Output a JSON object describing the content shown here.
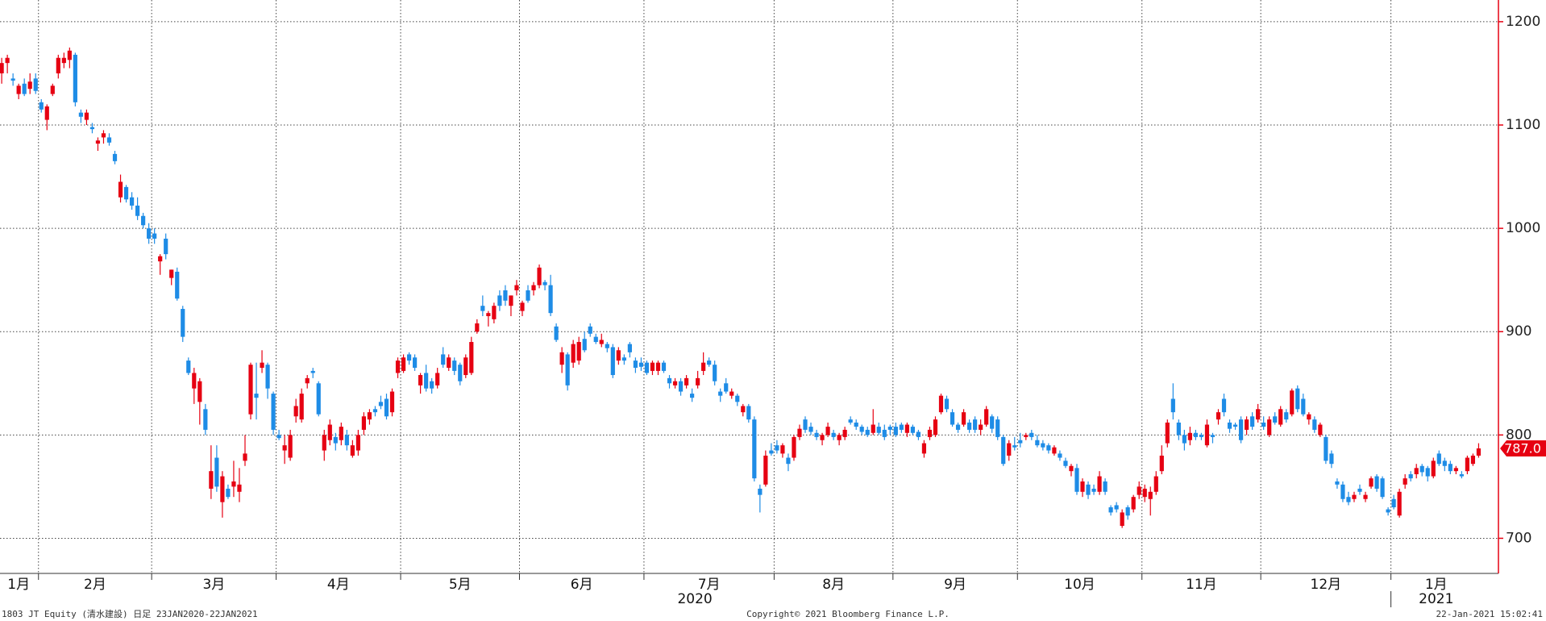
{
  "chart_data": {
    "type": "candlestick",
    "up_color": "#e60012",
    "down_color": "#1e8ce6",
    "ylim": [
      666,
      1221
    ],
    "yticks": [
      700,
      800,
      900,
      1000,
      1100,
      1200
    ],
    "grid": true,
    "xticks": [
      {
        "value": 0,
        "label": "1月"
      },
      {
        "value": 7,
        "label": "2月"
      },
      {
        "value": 27,
        "label": "3月"
      },
      {
        "value": 49,
        "label": "4月"
      },
      {
        "value": 71,
        "label": "5月"
      },
      {
        "value": 92,
        "label": "6月"
      },
      {
        "value": 114,
        "label": "7月"
      },
      {
        "value": 137,
        "label": "8月"
      },
      {
        "value": 158,
        "label": "9月"
      },
      {
        "value": 180,
        "label": "10月"
      },
      {
        "value": 202,
        "label": "11月"
      },
      {
        "value": 223,
        "label": "12月"
      },
      {
        "value": 246,
        "label": "1月"
      }
    ],
    "years": [
      {
        "value": 0,
        "label": "2020"
      },
      {
        "value": 246,
        "label": "2021"
      }
    ],
    "last_value": {
      "value": 787,
      "label": "787.0"
    },
    "footer_left": "1803 JT Equity (清水建設)  日足 23JAN2020-22JAN2021",
    "footer_center": "Copyright© 2021 Bloomberg Finance L.P.",
    "footer_right": "22-Jan-2021 15:02:41",
    "candles": [
      [
        1150,
        1165,
        1140,
        1160
      ],
      [
        1160,
        1168,
        1150,
        1165
      ],
      [
        1145,
        1150,
        1138,
        1143
      ],
      [
        1130,
        1140,
        1125,
        1138
      ],
      [
        1140,
        1145,
        1128,
        1130
      ],
      [
        1135,
        1150,
        1130,
        1142
      ],
      [
        1145,
        1150,
        1130,
        1133
      ],
      [
        1122,
        1125,
        1112,
        1115
      ],
      [
        1105,
        1120,
        1095,
        1118
      ],
      [
        1130,
        1140,
        1128,
        1138
      ],
      [
        1150,
        1168,
        1145,
        1165
      ],
      [
        1160,
        1170,
        1155,
        1165
      ],
      [
        1163,
        1175,
        1155,
        1172
      ],
      [
        1168,
        1170,
        1118,
        1122
      ],
      [
        1112,
        1115,
        1102,
        1108
      ],
      [
        1105,
        1115,
        1100,
        1112
      ],
      [
        1098,
        1102,
        1092,
        1096
      ],
      [
        1082,
        1088,
        1075,
        1085
      ],
      [
        1088,
        1095,
        1082,
        1092
      ],
      [
        1088,
        1092,
        1080,
        1083
      ],
      [
        1072,
        1075,
        1062,
        1065
      ],
      [
        1030,
        1052,
        1025,
        1045
      ],
      [
        1040,
        1042,
        1025,
        1028
      ],
      [
        1030,
        1035,
        1018,
        1022
      ],
      [
        1022,
        1030,
        1008,
        1012
      ],
      [
        1012,
        1015,
        1000,
        1003
      ],
      [
        1000,
        1005,
        985,
        990
      ],
      [
        995,
        1000,
        985,
        990
      ],
      [
        968,
        975,
        955,
        973
      ],
      [
        990,
        995,
        970,
        975
      ],
      [
        952,
        960,
        945,
        960
      ],
      [
        958,
        962,
        930,
        932
      ],
      [
        922,
        925,
        890,
        895
      ],
      [
        872,
        875,
        858,
        860
      ],
      [
        845,
        865,
        830,
        860
      ],
      [
        832,
        855,
        810,
        852
      ],
      [
        825,
        830,
        800,
        805
      ],
      [
        748,
        790,
        738,
        765
      ],
      [
        778,
        790,
        745,
        750
      ],
      [
        735,
        765,
        720,
        760
      ],
      [
        748,
        752,
        738,
        740
      ],
      [
        750,
        775,
        740,
        755
      ],
      [
        745,
        768,
        735,
        752
      ],
      [
        775,
        800,
        770,
        782
      ],
      [
        820,
        870,
        815,
        868
      ],
      [
        840,
        870,
        815,
        836
      ],
      [
        865,
        882,
        860,
        870
      ],
      [
        868,
        870,
        835,
        845
      ],
      [
        840,
        842,
        800,
        805
      ],
      [
        800,
        805,
        795,
        797
      ],
      [
        785,
        800,
        772,
        790
      ],
      [
        778,
        805,
        775,
        800
      ],
      [
        818,
        835,
        812,
        828
      ],
      [
        815,
        845,
        812,
        840
      ],
      [
        850,
        858,
        845,
        855
      ],
      [
        862,
        865,
        855,
        860
      ],
      [
        850,
        852,
        818,
        820
      ],
      [
        785,
        805,
        775,
        800
      ],
      [
        795,
        815,
        790,
        810
      ],
      [
        798,
        802,
        785,
        792
      ],
      [
        795,
        812,
        790,
        808
      ],
      [
        800,
        805,
        785,
        790
      ],
      [
        780,
        795,
        778,
        790
      ],
      [
        785,
        805,
        780,
        800
      ],
      [
        805,
        822,
        800,
        818
      ],
      [
        815,
        825,
        810,
        822
      ],
      [
        825,
        828,
        818,
        822
      ],
      [
        832,
        838,
        825,
        828
      ],
      [
        835,
        840,
        815,
        818
      ],
      [
        822,
        845,
        818,
        842
      ],
      [
        860,
        875,
        855,
        872
      ],
      [
        862,
        878,
        860,
        875
      ],
      [
        878,
        880,
        868,
        872
      ],
      [
        875,
        878,
        862,
        865
      ],
      [
        848,
        860,
        840,
        858
      ],
      [
        860,
        868,
        842,
        845
      ],
      [
        852,
        855,
        840,
        845
      ],
      [
        848,
        865,
        845,
        860
      ],
      [
        878,
        885,
        865,
        868
      ],
      [
        865,
        878,
        862,
        875
      ],
      [
        872,
        875,
        858,
        862
      ],
      [
        868,
        870,
        848,
        852
      ],
      [
        858,
        878,
        855,
        875
      ],
      [
        860,
        895,
        858,
        890
      ],
      [
        900,
        912,
        898,
        908
      ],
      [
        925,
        935,
        915,
        920
      ],
      [
        915,
        920,
        905,
        918
      ],
      [
        912,
        928,
        908,
        925
      ],
      [
        935,
        940,
        920,
        925
      ],
      [
        940,
        945,
        925,
        930
      ],
      [
        925,
        935,
        915,
        935
      ],
      [
        940,
        950,
        935,
        945
      ],
      [
        920,
        930,
        915,
        928
      ],
      [
        940,
        945,
        928,
        930
      ],
      [
        940,
        948,
        935,
        945
      ],
      [
        945,
        965,
        942,
        962
      ],
      [
        948,
        950,
        940,
        945
      ],
      [
        945,
        955,
        915,
        918
      ],
      [
        905,
        908,
        890,
        892
      ],
      [
        868,
        885,
        860,
        880
      ],
      [
        878,
        880,
        843,
        848
      ],
      [
        870,
        892,
        865,
        888
      ],
      [
        872,
        895,
        868,
        890
      ],
      [
        893,
        900,
        880,
        882
      ],
      [
        905,
        908,
        895,
        898
      ],
      [
        895,
        898,
        888,
        890
      ],
      [
        888,
        898,
        885,
        892
      ],
      [
        888,
        890,
        880,
        884
      ],
      [
        885,
        888,
        855,
        858
      ],
      [
        872,
        885,
        868,
        882
      ],
      [
        875,
        878,
        868,
        872
      ],
      [
        888,
        890,
        875,
        880
      ],
      [
        872,
        875,
        860,
        865
      ],
      [
        870,
        875,
        862,
        866
      ],
      [
        870,
        872,
        858,
        860
      ],
      [
        862,
        872,
        858,
        870
      ],
      [
        862,
        872,
        858,
        870
      ],
      [
        870,
        872,
        860,
        862
      ],
      [
        855,
        858,
        845,
        850
      ],
      [
        848,
        855,
        845,
        852
      ],
      [
        852,
        855,
        838,
        842
      ],
      [
        848,
        858,
        845,
        855
      ],
      [
        840,
        845,
        832,
        836
      ],
      [
        848,
        862,
        845,
        855
      ],
      [
        862,
        880,
        858,
        870
      ],
      [
        872,
        875,
        866,
        868
      ],
      [
        868,
        872,
        848,
        852
      ],
      [
        842,
        845,
        832,
        838
      ],
      [
        850,
        855,
        840,
        842
      ],
      [
        838,
        845,
        835,
        842
      ],
      [
        838,
        840,
        828,
        832
      ],
      [
        822,
        830,
        818,
        828
      ],
      [
        828,
        830,
        812,
        815
      ],
      [
        815,
        818,
        755,
        758
      ],
      [
        748,
        752,
        725,
        742
      ],
      [
        752,
        785,
        750,
        780
      ],
      [
        785,
        792,
        780,
        782
      ],
      [
        790,
        795,
        782,
        785
      ],
      [
        782,
        792,
        778,
        790
      ],
      [
        778,
        782,
        765,
        772
      ],
      [
        778,
        800,
        775,
        798
      ],
      [
        798,
        810,
        795,
        806
      ],
      [
        815,
        818,
        802,
        805
      ],
      [
        808,
        812,
        800,
        803
      ],
      [
        802,
        805,
        795,
        798
      ],
      [
        795,
        802,
        790,
        800
      ],
      [
        800,
        812,
        798,
        808
      ],
      [
        802,
        805,
        795,
        798
      ],
      [
        795,
        802,
        790,
        800
      ],
      [
        798,
        808,
        795,
        805
      ],
      [
        815,
        818,
        810,
        812
      ],
      [
        812,
        815,
        805,
        808
      ],
      [
        808,
        810,
        800,
        803
      ],
      [
        805,
        808,
        798,
        800
      ],
      [
        802,
        825,
        800,
        810
      ],
      [
        808,
        812,
        800,
        802
      ],
      [
        805,
        810,
        795,
        798
      ],
      [
        808,
        810,
        800,
        805
      ],
      [
        808,
        812,
        798,
        800
      ],
      [
        810,
        812,
        802,
        805
      ],
      [
        802,
        812,
        798,
        810
      ],
      [
        808,
        810,
        800,
        802
      ],
      [
        803,
        805,
        795,
        798
      ],
      [
        782,
        795,
        778,
        792
      ],
      [
        798,
        808,
        795,
        805
      ],
      [
        800,
        818,
        798,
        815
      ],
      [
        822,
        840,
        820,
        838
      ],
      [
        835,
        838,
        822,
        825
      ],
      [
        822,
        825,
        808,
        810
      ],
      [
        810,
        812,
        802,
        805
      ],
      [
        810,
        825,
        808,
        822
      ],
      [
        812,
        815,
        802,
        805
      ],
      [
        815,
        818,
        802,
        805
      ],
      [
        805,
        815,
        800,
        810
      ],
      [
        810,
        828,
        808,
        825
      ],
      [
        818,
        820,
        802,
        806
      ],
      [
        815,
        818,
        795,
        798
      ],
      [
        798,
        800,
        770,
        772
      ],
      [
        780,
        795,
        775,
        792
      ],
      [
        790,
        798,
        785,
        788
      ],
      [
        795,
        802,
        788,
        792
      ],
      [
        798,
        802,
        795,
        800
      ],
      [
        802,
        805,
        795,
        798
      ],
      [
        795,
        800,
        788,
        790
      ],
      [
        792,
        795,
        785,
        788
      ],
      [
        790,
        792,
        782,
        785
      ],
      [
        782,
        790,
        780,
        788
      ],
      [
        782,
        785,
        775,
        778
      ],
      [
        775,
        778,
        768,
        770
      ],
      [
        765,
        772,
        760,
        770
      ],
      [
        768,
        772,
        742,
        745
      ],
      [
        745,
        758,
        740,
        755
      ],
      [
        752,
        755,
        738,
        742
      ],
      [
        748,
        752,
        742,
        745
      ],
      [
        745,
        765,
        742,
        760
      ],
      [
        755,
        758,
        742,
        745
      ],
      [
        730,
        732,
        722,
        725
      ],
      [
        732,
        735,
        725,
        728
      ],
      [
        712,
        728,
        710,
        725
      ],
      [
        730,
        732,
        718,
        722
      ],
      [
        728,
        742,
        725,
        740
      ],
      [
        742,
        755,
        738,
        750
      ],
      [
        740,
        752,
        735,
        748
      ],
      [
        738,
        750,
        722,
        745
      ],
      [
        745,
        765,
        742,
        760
      ],
      [
        765,
        790,
        762,
        780
      ],
      [
        792,
        815,
        788,
        812
      ],
      [
        835,
        850,
        815,
        822
      ],
      [
        812,
        815,
        795,
        800
      ],
      [
        800,
        805,
        785,
        792
      ],
      [
        795,
        808,
        790,
        802
      ],
      [
        802,
        805,
        795,
        798
      ],
      [
        800,
        802,
        795,
        798
      ],
      [
        790,
        815,
        788,
        810
      ],
      [
        800,
        802,
        792,
        798
      ],
      [
        815,
        825,
        810,
        822
      ],
      [
        835,
        840,
        818,
        822
      ],
      [
        812,
        815,
        802,
        806
      ],
      [
        810,
        812,
        805,
        808
      ],
      [
        815,
        818,
        792,
        795
      ],
      [
        805,
        818,
        800,
        815
      ],
      [
        818,
        822,
        805,
        808
      ],
      [
        815,
        830,
        812,
        825
      ],
      [
        812,
        818,
        805,
        808
      ],
      [
        800,
        818,
        798,
        815
      ],
      [
        818,
        822,
        810,
        812
      ],
      [
        810,
        828,
        808,
        825
      ],
      [
        822,
        825,
        812,
        815
      ],
      [
        820,
        845,
        818,
        843
      ],
      [
        845,
        848,
        822,
        825
      ],
      [
        835,
        840,
        818,
        820
      ],
      [
        815,
        822,
        810,
        820
      ],
      [
        815,
        818,
        802,
        805
      ],
      [
        800,
        812,
        798,
        810
      ],
      [
        798,
        800,
        772,
        775
      ],
      [
        782,
        785,
        768,
        772
      ],
      [
        755,
        758,
        748,
        752
      ],
      [
        752,
        755,
        735,
        738
      ],
      [
        740,
        745,
        732,
        735
      ],
      [
        738,
        745,
        735,
        742
      ],
      [
        748,
        752,
        742,
        745
      ],
      [
        738,
        745,
        735,
        742
      ],
      [
        750,
        760,
        748,
        758
      ],
      [
        760,
        762,
        745,
        748
      ],
      [
        758,
        760,
        738,
        740
      ],
      [
        728,
        730,
        722,
        725
      ],
      [
        738,
        742,
        728,
        730
      ],
      [
        722,
        748,
        720,
        745
      ],
      [
        752,
        762,
        748,
        758
      ],
      [
        762,
        765,
        755,
        758
      ],
      [
        762,
        772,
        758,
        768
      ],
      [
        770,
        772,
        760,
        764
      ],
      [
        768,
        770,
        755,
        760
      ],
      [
        760,
        778,
        758,
        775
      ],
      [
        782,
        785,
        770,
        772
      ],
      [
        775,
        778,
        765,
        770
      ],
      [
        772,
        775,
        762,
        765
      ],
      [
        765,
        770,
        762,
        768
      ],
      [
        762,
        765,
        758,
        760
      ],
      [
        765,
        780,
        762,
        778
      ],
      [
        772,
        782,
        770,
        780
      ],
      [
        780,
        792,
        778,
        787
      ]
    ]
  }
}
